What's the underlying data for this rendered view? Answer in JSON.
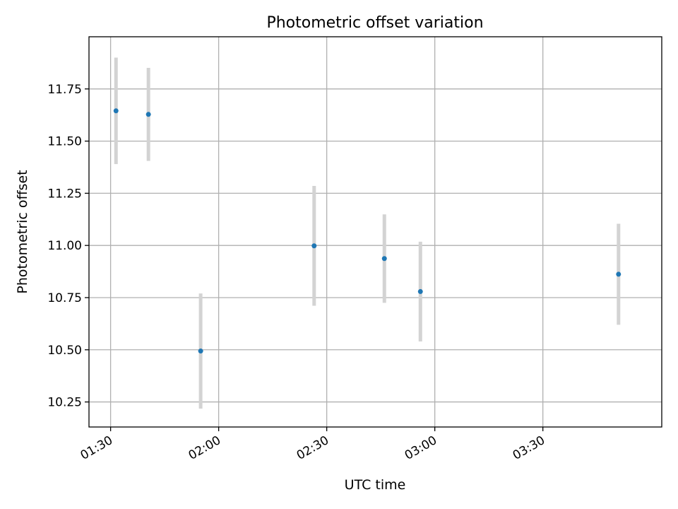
{
  "chart_data": {
    "type": "scatter",
    "title": "Photometric offset variation",
    "xlabel": "UTC time",
    "ylabel": "Photometric offset",
    "x_unit": "minutes since 00:00 UTC",
    "xlim": [
      84.0,
      243.0
    ],
    "ylim": [
      10.13,
      12.0
    ],
    "xticks": [
      90,
      120,
      150,
      180,
      210
    ],
    "xtick_labels": [
      "01:30",
      "02:00",
      "02:30",
      "03:00",
      "03:30"
    ],
    "yticks": [
      10.25,
      10.5,
      10.75,
      11.0,
      11.25,
      11.5,
      11.75
    ],
    "ytick_labels": [
      "10.25",
      "10.50",
      "10.75",
      "11.00",
      "11.25",
      "11.50",
      "11.75"
    ],
    "grid": true,
    "series": [
      {
        "name": "Photometric offset",
        "x": [
          91.5,
          100.5,
          115.0,
          146.5,
          166.0,
          176.0,
          231.0
        ],
        "y": [
          11.645,
          11.628,
          10.494,
          10.998,
          10.937,
          10.779,
          10.862
        ],
        "yerr": [
          0.255,
          0.223,
          0.276,
          0.287,
          0.212,
          0.239,
          0.242
        ]
      }
    ],
    "colors": {
      "point": "#1f77b4",
      "errorbar": "#d3d3d3",
      "grid": "#b0b0b0",
      "axes": "#000000"
    }
  }
}
